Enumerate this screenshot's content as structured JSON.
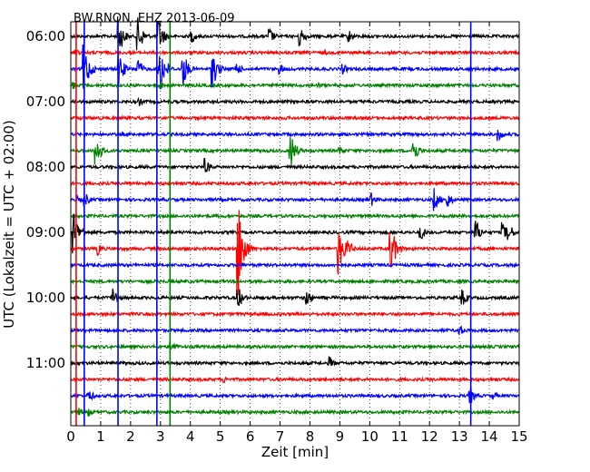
{
  "chart_data": {
    "type": "line",
    "title": "BW.RNON..EHZ 2013-06-09",
    "xlabel": "Zeit  [min]",
    "ylabel": "UTC (Lokalzeit = UTC + 02:00)",
    "xlim": [
      0,
      15
    ],
    "x_ticks": [
      "0",
      "1",
      "2",
      "3",
      "4",
      "5",
      "6",
      "7",
      "8",
      "9",
      "10",
      "11",
      "12",
      "13",
      "14",
      "15"
    ],
    "y_ticks": [
      "06:00",
      "07:00",
      "08:00",
      "09:00",
      "10:00",
      "11:00"
    ],
    "trace_colors": [
      "#000000",
      "#ff0000",
      "#0000ff",
      "#008000"
    ],
    "grid": true,
    "traces_per_hour": 4,
    "minutes_per_trace": 15,
    "start_time": "06:00",
    "series": [
      {
        "start": "06:00",
        "events": [
          {
            "t": 1.6,
            "a": 1.4
          },
          {
            "t": 2.25,
            "a": 1.3
          },
          {
            "t": 2.95,
            "a": 1.2
          },
          {
            "t": 4.05,
            "a": 0.5
          },
          {
            "t": 6.65,
            "a": 0.6
          },
          {
            "t": 7.65,
            "a": 0.9
          },
          {
            "t": 9.3,
            "a": 0.5
          }
        ]
      },
      {
        "start": "06:15",
        "events": [
          {
            "t": 0.15,
            "a": 0.3
          },
          {
            "t": 8.5,
            "a": 0.2
          }
        ]
      },
      {
        "start": "06:30",
        "events": [
          {
            "t": 0.45,
            "a": 1.8
          },
          {
            "t": 1.6,
            "a": 1.3
          },
          {
            "t": 2.2,
            "a": 1.0
          },
          {
            "t": 2.95,
            "a": 2.2
          },
          {
            "t": 3.75,
            "a": 1.3
          },
          {
            "t": 4.75,
            "a": 1.3
          },
          {
            "t": 5.55,
            "a": 0.5
          },
          {
            "t": 7.0,
            "a": 0.4
          },
          {
            "t": 9.1,
            "a": 0.4
          }
        ]
      },
      {
        "start": "06:45",
        "events": [
          {
            "t": 0.1,
            "a": 0.3
          },
          {
            "t": 3.0,
            "a": 0.3
          },
          {
            "t": 8.3,
            "a": 0.2
          }
        ]
      },
      {
        "start": "07:00",
        "events": [
          {
            "t": 2.3,
            "a": 0.3
          }
        ]
      },
      {
        "start": "07:15",
        "events": []
      },
      {
        "start": "07:30",
        "events": [
          {
            "t": 14.3,
            "a": 0.5
          }
        ]
      },
      {
        "start": "07:45",
        "events": [
          {
            "t": 0.85,
            "a": 1.1
          },
          {
            "t": 7.35,
            "a": 1.3
          },
          {
            "t": 9.0,
            "a": 0.4
          },
          {
            "t": 11.45,
            "a": 1.0
          }
        ]
      },
      {
        "start": "08:00",
        "events": [
          {
            "t": 4.5,
            "a": 0.6
          }
        ]
      },
      {
        "start": "08:15",
        "events": []
      },
      {
        "start": "08:30",
        "events": [
          {
            "t": 0.2,
            "a": 0.3
          },
          {
            "t": 0.45,
            "a": 0.6
          },
          {
            "t": 10.05,
            "a": 0.5
          },
          {
            "t": 12.15,
            "a": 0.9
          },
          {
            "t": 12.6,
            "a": 0.6
          }
        ]
      },
      {
        "start": "08:45",
        "events": []
      },
      {
        "start": "09:00",
        "events": [
          {
            "t": 0.1,
            "a": 1.5
          },
          {
            "t": 11.7,
            "a": 0.6
          },
          {
            "t": 13.55,
            "a": 0.9
          },
          {
            "t": 14.45,
            "a": 0.7
          },
          {
            "t": 14.65,
            "a": 0.7
          }
        ]
      },
      {
        "start": "09:15",
        "events": [
          {
            "t": 0.9,
            "a": 0.5
          },
          {
            "t": 5.6,
            "a": 3.8
          },
          {
            "t": 8.95,
            "a": 1.9
          },
          {
            "t": 9.3,
            "a": 0.6
          },
          {
            "t": 10.7,
            "a": 1.8
          }
        ]
      },
      {
        "start": "09:30",
        "events": []
      },
      {
        "start": "09:45",
        "events": []
      },
      {
        "start": "10:00",
        "events": [
          {
            "t": 1.4,
            "a": 0.8
          },
          {
            "t": 5.6,
            "a": 0.8
          },
          {
            "t": 7.9,
            "a": 0.6
          },
          {
            "t": 13.1,
            "a": 0.6
          }
        ]
      },
      {
        "start": "10:15",
        "events": []
      },
      {
        "start": "10:30",
        "events": [
          {
            "t": 13.0,
            "a": 0.4
          }
        ]
      },
      {
        "start": "10:45",
        "events": [
          {
            "t": 3.35,
            "a": 0.6
          }
        ]
      },
      {
        "start": "11:00",
        "events": [
          {
            "t": 8.65,
            "a": 0.5
          }
        ]
      },
      {
        "start": "11:15",
        "events": [
          {
            "t": 5.1,
            "a": 0.3
          }
        ]
      },
      {
        "start": "11:30",
        "events": [
          {
            "t": 0.6,
            "a": 0.5
          },
          {
            "t": 13.35,
            "a": 0.7
          },
          {
            "t": 14.15,
            "a": 0.3
          }
        ]
      },
      {
        "start": "11:45",
        "events": [
          {
            "t": 0.3,
            "a": 0.3
          },
          {
            "t": 0.6,
            "a": 0.3
          }
        ]
      }
    ],
    "vertical_markers": [
      {
        "x": 0.18,
        "color": "#ff0000"
      },
      {
        "x": 0.45,
        "color": "#0000ff"
      },
      {
        "x": 1.58,
        "color": "#0000ff"
      },
      {
        "x": 2.88,
        "color": "#0000ff"
      },
      {
        "x": 3.32,
        "color": "#008000"
      },
      {
        "x": 13.38,
        "color": "#0000ff"
      }
    ]
  }
}
